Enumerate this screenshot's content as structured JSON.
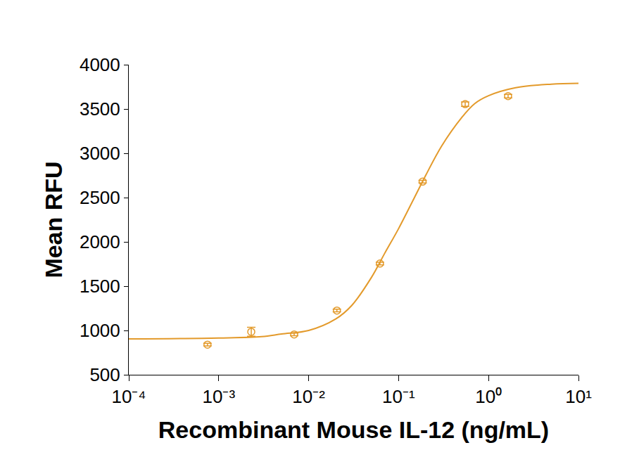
{
  "chart_data": {
    "type": "scatter",
    "x_label": "Recombinant Mouse IL-12 (ng/mL)",
    "y_label": "Mean RFU",
    "log": "x",
    "grid": false,
    "xlim": [
      0.0001,
      10
    ],
    "xticks": [
      {
        "value": 0.0001,
        "label": "10⁻⁴"
      },
      {
        "value": 0.001,
        "label": "10⁻³"
      },
      {
        "value": 0.01,
        "label": "10⁻²"
      },
      {
        "value": 0.1,
        "label": "10⁻¹"
      },
      {
        "value": 1,
        "label": "10⁰"
      },
      {
        "value": 10,
        "label": "10¹"
      }
    ],
    "ylim": [
      500,
      4000
    ],
    "yticks": [
      500,
      1000,
      1500,
      2000,
      2500,
      3000,
      3500,
      4000
    ],
    "series": [
      {
        "type": "scatter",
        "color": "#e39a2b",
        "marker": "circle-open",
        "x": [
          0.00075,
          0.0023,
          0.0069,
          0.0206,
          0.062,
          0.185,
          0.55,
          1.65
        ],
        "values": [
          840,
          985,
          955,
          1225,
          1755,
          2680,
          3555,
          3645
        ],
        "errors": [
          15,
          50,
          15,
          15,
          15,
          15,
          25,
          20
        ]
      },
      {
        "type": "line",
        "color": "#e39a2b",
        "line_style": "solid",
        "x": [
          0.0001,
          0.001,
          0.003,
          0.005,
          0.01,
          0.02,
          0.03,
          0.05,
          0.07,
          0.1,
          0.15,
          0.2,
          0.3,
          0.5,
          0.7,
          1,
          2,
          5,
          10
        ],
        "values": [
          905,
          915,
          930,
          960,
          1000,
          1130,
          1280,
          1600,
          1870,
          2150,
          2500,
          2750,
          3080,
          3400,
          3560,
          3650,
          3740,
          3780,
          3790
        ]
      }
    ]
  }
}
